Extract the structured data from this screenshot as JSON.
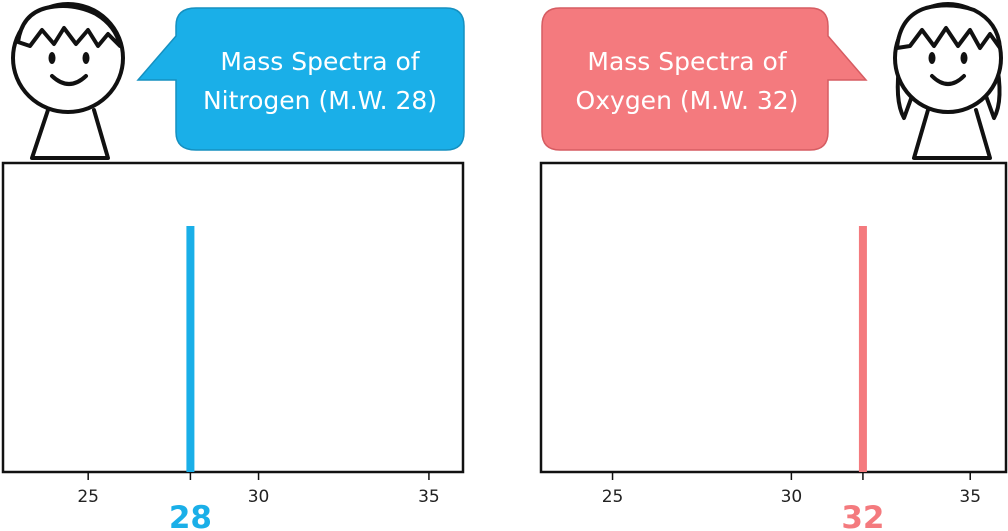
{
  "colors": {
    "nitrogen": "#1AAFE8",
    "oxygen": "#F47A7E",
    "frame": "#111111"
  },
  "chart_data": [
    {
      "type": "bar",
      "caption_lines": [
        "Mass Spectra of",
        "Nitrogen (M.W. 28)"
      ],
      "xlim": [
        22.5,
        36
      ],
      "xticks": [
        25,
        30,
        35
      ],
      "tick_labels": [
        "25",
        "30",
        "35"
      ],
      "peaks": [
        {
          "x": 28,
          "y": 1,
          "label": "28"
        }
      ],
      "grid": false,
      "color": "#1AAFE8",
      "icon": "boy-face-icon"
    },
    {
      "type": "bar",
      "caption_lines": [
        "Mass Spectra of",
        "Oxygen (M.W. 32)"
      ],
      "xlim": [
        23,
        36
      ],
      "xticks": [
        25,
        30,
        35
      ],
      "tick_labels": [
        "25",
        "30",
        "35"
      ],
      "peaks": [
        {
          "x": 32,
          "y": 1,
          "label": "32"
        }
      ],
      "grid": false,
      "color": "#F47A7E",
      "icon": "girl-face-icon"
    }
  ]
}
